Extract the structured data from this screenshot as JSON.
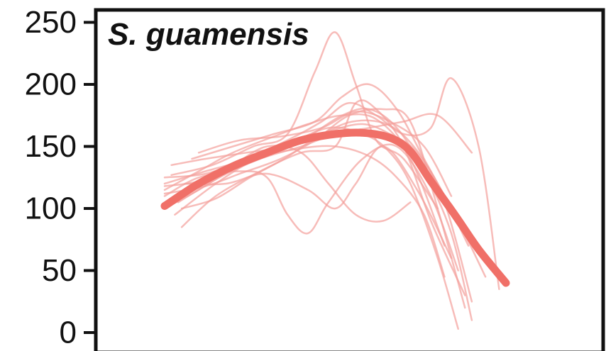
{
  "chart_data": {
    "type": "line",
    "title": "S. guamensis",
    "xlabel": "",
    "ylabel": "",
    "ylim": [
      0,
      250
    ],
    "yticks": [
      0,
      50,
      100,
      150,
      200,
      250
    ],
    "xlim": [
      0,
      100
    ],
    "grid": false,
    "legend": "none",
    "colors": {
      "mean": "#f07068",
      "individual": "#f3a09b"
    },
    "series": [
      {
        "role": "mean",
        "x": [
          0,
          10,
          20,
          30,
          40,
          50,
          58,
          66,
          72,
          78,
          85,
          92,
          100
        ],
        "y": [
          102,
          120,
          134,
          145,
          155,
          160,
          161,
          157,
          146,
          122,
          95,
          67,
          40
        ]
      },
      {
        "role": "individual",
        "x": [
          0,
          10,
          22,
          35,
          48,
          58,
          65,
          72,
          80,
          86
        ],
        "y": [
          100,
          115,
          135,
          150,
          165,
          160,
          148,
          120,
          60,
          3
        ]
      },
      {
        "role": "individual",
        "x": [
          0,
          12,
          25,
          40,
          52,
          60,
          68,
          76,
          84,
          90
        ],
        "y": [
          120,
          130,
          140,
          155,
          175,
          180,
          165,
          130,
          80,
          10
        ]
      },
      {
        "role": "individual",
        "x": [
          5,
          15,
          28,
          40,
          50,
          56,
          62,
          70,
          78,
          88
        ],
        "y": [
          85,
          110,
          130,
          145,
          150,
          185,
          180,
          150,
          90,
          30
        ]
      },
      {
        "role": "individual",
        "x": [
          0,
          10,
          22,
          30,
          36,
          42,
          48,
          58,
          68,
          78,
          86
        ],
        "y": [
          110,
          125,
          130,
          125,
          95,
          80,
          105,
          140,
          150,
          110,
          50
        ]
      },
      {
        "role": "individual",
        "x": [
          2,
          14,
          26,
          36,
          44,
          50,
          56,
          62,
          70,
          80
        ],
        "y": [
          127,
          135,
          150,
          160,
          210,
          242,
          200,
          155,
          140,
          100
        ]
      },
      {
        "role": "individual",
        "x": [
          0,
          12,
          24,
          36,
          46,
          54,
          62,
          70,
          78,
          84,
          92,
          98
        ],
        "y": [
          125,
          128,
          140,
          155,
          170,
          185,
          175,
          160,
          165,
          205,
          150,
          35
        ]
      },
      {
        "role": "individual",
        "x": [
          4,
          16,
          28,
          40,
          50,
          60,
          70,
          80,
          90
        ],
        "y": [
          105,
          125,
          140,
          150,
          160,
          165,
          170,
          175,
          145
        ]
      },
      {
        "role": "individual",
        "x": [
          0,
          10,
          20,
          32,
          42,
          52,
          62,
          72,
          82
        ],
        "y": [
          115,
          130,
          145,
          158,
          168,
          175,
          172,
          140,
          70
        ]
      },
      {
        "role": "individual",
        "x": [
          6,
          18,
          30,
          42,
          50,
          56,
          64,
          74,
          84
        ],
        "y": [
          120,
          120,
          128,
          115,
          100,
          120,
          150,
          115,
          60
        ]
      },
      {
        "role": "individual",
        "x": [
          0,
          12,
          22,
          34,
          44,
          54,
          64,
          72,
          80,
          88
        ],
        "y": [
          112,
          118,
          128,
          140,
          155,
          175,
          180,
          170,
          100,
          20
        ]
      },
      {
        "role": "individual",
        "x": [
          3,
          15,
          27,
          39,
          50,
          60,
          68,
          76,
          82
        ],
        "y": [
          95,
          120,
          140,
          148,
          150,
          142,
          125,
          95,
          45
        ]
      },
      {
        "role": "individual",
        "x": [
          8,
          20,
          32,
          44,
          52,
          60,
          68,
          76,
          86,
          94
        ],
        "y": [
          140,
          150,
          160,
          170,
          190,
          200,
          180,
          140,
          90,
          45
        ]
      },
      {
        "role": "individual",
        "x": [
          0,
          10,
          20,
          30,
          40,
          48,
          56,
          64,
          72
        ],
        "y": [
          118,
          122,
          135,
          150,
          145,
          120,
          95,
          90,
          105
        ]
      },
      {
        "role": "individual",
        "x": [
          5,
          15,
          25,
          35,
          45,
          55,
          65,
          73,
          81,
          89
        ],
        "y": [
          100,
          108,
          125,
          140,
          158,
          170,
          168,
          150,
          115,
          70
        ]
      },
      {
        "role": "individual",
        "x": [
          2,
          12,
          24,
          36,
          48,
          58,
          66,
          74,
          82,
          90
        ],
        "y": [
          135,
          140,
          145,
          150,
          162,
          168,
          160,
          145,
          105,
          25
        ]
      },
      {
        "role": "individual",
        "x": [
          10,
          22,
          34,
          46,
          56,
          66,
          76,
          84
        ],
        "y": [
          145,
          155,
          158,
          165,
          178,
          170,
          150,
          110
        ]
      }
    ]
  }
}
